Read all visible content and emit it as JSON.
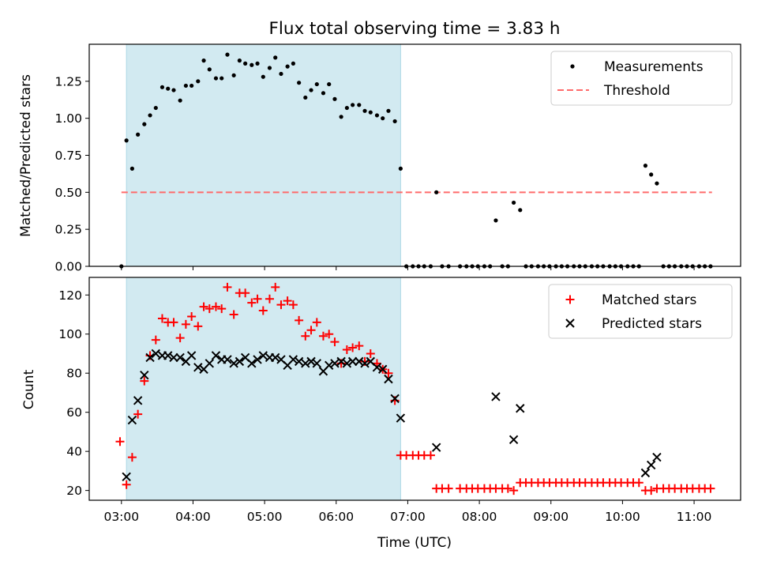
{
  "chart_data": [
    {
      "type": "scatter",
      "title": "Flux total observing time = 3.83 h",
      "xlabel": "",
      "ylabel": "Matched/Predicted stars",
      "xlim_hours": [
        2.55,
        11.65
      ],
      "ylim": [
        0,
        1.5
      ],
      "yticks": [
        0.0,
        0.25,
        0.5,
        0.75,
        1.0,
        1.25
      ],
      "ytick_labels": [
        "0.00",
        "0.25",
        "0.50",
        "0.75",
        "1.00",
        "1.25"
      ],
      "shaded_span_hours": [
        3.07,
        6.9
      ],
      "shaded_color": "#add8e6",
      "legend_position": "top-right",
      "legend": [
        "Measurements",
        "Threshold"
      ],
      "threshold": {
        "name": "Threshold",
        "y": 0.5,
        "x_range_hours": [
          3.0,
          11.25
        ],
        "color": "#ff6b6b",
        "style": "dashed"
      },
      "series": [
        {
          "name": "Measurements",
          "marker": "dot",
          "color": "#000000",
          "x_hours": [
            3.0,
            3.07,
            3.15,
            3.23,
            3.32,
            3.4,
            3.48,
            3.57,
            3.65,
            3.73,
            3.82,
            3.9,
            3.98,
            4.07,
            4.15,
            4.23,
            4.32,
            4.4,
            4.48,
            4.57,
            4.65,
            4.73,
            4.82,
            4.9,
            4.98,
            5.07,
            5.15,
            5.23,
            5.32,
            5.4,
            5.48,
            5.57,
            5.65,
            5.73,
            5.82,
            5.9,
            5.98,
            6.07,
            6.15,
            6.23,
            6.32,
            6.4,
            6.48,
            6.57,
            6.65,
            6.73,
            6.82,
            6.9,
            6.98,
            7.07,
            7.15,
            7.23,
            7.32,
            7.4,
            7.48,
            7.57,
            7.73,
            7.82,
            7.9,
            7.98,
            8.07,
            8.15,
            8.23,
            8.32,
            8.4,
            8.48,
            8.57,
            8.65,
            8.73,
            8.82,
            8.9,
            8.98,
            9.07,
            9.15,
            9.23,
            9.32,
            9.4,
            9.48,
            9.57,
            9.65,
            9.73,
            9.82,
            9.9,
            9.98,
            10.07,
            10.15,
            10.23,
            10.32,
            10.4,
            10.48,
            10.57,
            10.65,
            10.73,
            10.82,
            10.9,
            10.98,
            11.07,
            11.15,
            11.23
          ],
          "y": [
            0.0,
            0.85,
            0.66,
            0.89,
            0.96,
            1.02,
            1.07,
            1.21,
            1.2,
            1.19,
            1.12,
            1.22,
            1.22,
            1.25,
            1.39,
            1.33,
            1.27,
            1.27,
            1.43,
            1.29,
            1.39,
            1.37,
            1.36,
            1.37,
            1.28,
            1.34,
            1.41,
            1.3,
            1.35,
            1.37,
            1.24,
            1.14,
            1.19,
            1.23,
            1.17,
            1.23,
            1.13,
            1.01,
            1.07,
            1.09,
            1.09,
            1.05,
            1.04,
            1.02,
            1.0,
            1.05,
            0.98,
            0.66,
            0.0,
            0.0,
            0.0,
            0.0,
            0.0,
            0.5,
            0.0,
            0.0,
            0.0,
            0.0,
            0.0,
            0.0,
            0.0,
            0.0,
            0.31,
            0.0,
            0.0,
            0.43,
            0.38,
            0.0,
            0.0,
            0.0,
            0.0,
            0.0,
            0.0,
            0.0,
            0.0,
            0.0,
            0.0,
            0.0,
            0.0,
            0.0,
            0.0,
            0.0,
            0.0,
            0.0,
            0.0,
            0.0,
            0.0,
            0.68,
            0.62,
            0.56,
            0.0,
            0.0,
            0.0,
            0.0,
            0.0,
            0.0,
            0.0,
            0.0,
            0.0
          ]
        }
      ]
    },
    {
      "type": "scatter",
      "title": "",
      "xlabel": "Time (UTC)",
      "ylabel": "Count",
      "xlim_hours": [
        2.55,
        11.65
      ],
      "ylim": [
        15,
        129
      ],
      "yticks": [
        20,
        40,
        60,
        80,
        100,
        120
      ],
      "ytick_labels": [
        "20",
        "40",
        "60",
        "80",
        "100",
        "120"
      ],
      "xticks_hours": [
        3,
        4,
        5,
        6,
        7,
        8,
        9,
        10,
        11
      ],
      "xtick_labels": [
        "03:00",
        "04:00",
        "05:00",
        "06:00",
        "07:00",
        "08:00",
        "09:00",
        "10:00",
        "11:00"
      ],
      "shaded_span_hours": [
        3.07,
        6.9
      ],
      "shaded_color": "#add8e6",
      "legend_position": "top-right",
      "legend": [
        "Matched stars",
        "Predicted stars"
      ],
      "series": [
        {
          "name": "Matched stars",
          "marker": "plus",
          "color": "#ff0000",
          "x_hours": [
            2.98,
            3.07,
            3.15,
            3.23,
            3.32,
            3.4,
            3.48,
            3.57,
            3.65,
            3.73,
            3.82,
            3.9,
            3.98,
            4.07,
            4.15,
            4.23,
            4.32,
            4.4,
            4.48,
            4.57,
            4.65,
            4.73,
            4.82,
            4.9,
            4.98,
            5.07,
            5.15,
            5.23,
            5.32,
            5.4,
            5.48,
            5.57,
            5.65,
            5.73,
            5.82,
            5.9,
            5.98,
            6.07,
            6.15,
            6.23,
            6.32,
            6.4,
            6.48,
            6.57,
            6.65,
            6.73,
            6.82,
            6.9,
            6.98,
            7.07,
            7.15,
            7.23,
            7.32,
            7.4,
            7.48,
            7.57,
            7.73,
            7.82,
            7.9,
            7.98,
            8.07,
            8.15,
            8.23,
            8.32,
            8.4,
            8.48,
            8.57,
            8.65,
            8.73,
            8.82,
            8.9,
            8.98,
            9.07,
            9.15,
            9.23,
            9.32,
            9.4,
            9.48,
            9.57,
            9.65,
            9.73,
            9.82,
            9.9,
            9.98,
            10.07,
            10.15,
            10.23,
            10.32,
            10.4,
            10.48,
            10.57,
            10.65,
            10.73,
            10.82,
            10.9,
            10.98,
            11.07,
            11.15,
            11.23
          ],
          "y": [
            45,
            23,
            37,
            59,
            76,
            89,
            97,
            108,
            106,
            106,
            98,
            105,
            109,
            104,
            114,
            113,
            114,
            113,
            124,
            110,
            121,
            121,
            116,
            118,
            112,
            118,
            124,
            115,
            117,
            115,
            107,
            99,
            102,
            106,
            99,
            100,
            96,
            85,
            92,
            93,
            94,
            86,
            90,
            85,
            82,
            80,
            66,
            38,
            38,
            38,
            38,
            38,
            38,
            21,
            21,
            21,
            21,
            21,
            21,
            21,
            21,
            21,
            21,
            21,
            21,
            20,
            24,
            24,
            24,
            24,
            24,
            24,
            24,
            24,
            24,
            24,
            24,
            24,
            24,
            24,
            24,
            24,
            24,
            24,
            24,
            24,
            24,
            20,
            20,
            21,
            21,
            21,
            21,
            21,
            21,
            21,
            21,
            21,
            21
          ]
        },
        {
          "name": "Predicted stars",
          "marker": "x",
          "color": "#000000",
          "x_hours": [
            3.07,
            3.15,
            3.23,
            3.32,
            3.4,
            3.48,
            3.57,
            3.65,
            3.73,
            3.82,
            3.9,
            3.98,
            4.07,
            4.15,
            4.23,
            4.32,
            4.4,
            4.48,
            4.57,
            4.65,
            4.73,
            4.82,
            4.9,
            4.98,
            5.07,
            5.15,
            5.23,
            5.32,
            5.4,
            5.48,
            5.57,
            5.65,
            5.73,
            5.82,
            5.9,
            5.98,
            6.07,
            6.15,
            6.23,
            6.32,
            6.4,
            6.48,
            6.57,
            6.65,
            6.73,
            6.82,
            6.9,
            7.4,
            8.23,
            8.48,
            8.57,
            10.32,
            10.4,
            10.48
          ],
          "y": [
            27,
            56,
            66,
            79,
            88,
            90,
            89,
            89,
            88,
            88,
            86,
            89,
            83,
            82,
            85,
            89,
            87,
            87,
            85,
            86,
            88,
            85,
            87,
            89,
            88,
            88,
            87,
            84,
            87,
            86,
            85,
            86,
            85,
            81,
            84,
            85,
            86,
            85,
            86,
            86,
            85,
            86,
            83,
            82,
            77,
            67,
            57,
            42,
            68,
            46,
            62,
            29,
            33,
            37
          ]
        }
      ]
    }
  ]
}
